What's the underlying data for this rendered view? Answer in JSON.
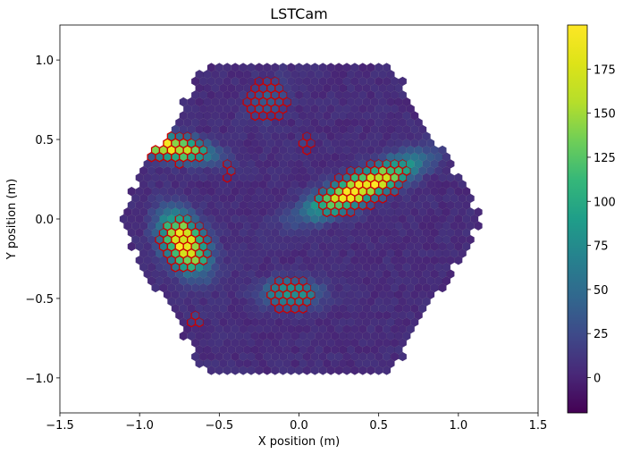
{
  "chart_data": {
    "type": "heatmap",
    "subtype": "hexagonal camera image",
    "title": "LSTCam",
    "xlabel": "X position (m)",
    "ylabel": "Y position (m)",
    "xlim": [
      -1.5,
      1.5
    ],
    "ylim": [
      -1.22,
      1.22
    ],
    "x_ticks": [
      -1.5,
      -1.0,
      -0.5,
      0.0,
      0.5,
      1.0,
      1.5
    ],
    "x_tick_labels": [
      "−1.5",
      "−1.0",
      "−0.5",
      "0.0",
      "0.5",
      "1.0",
      "1.5"
    ],
    "y_ticks": [
      -1.0,
      -0.5,
      0.0,
      0.5,
      1.0
    ],
    "y_tick_labels": [
      "−1.0",
      "−0.5",
      "0.0",
      "0.5",
      "1.0"
    ],
    "camera_radius": 1.15,
    "pixel_pitch": 0.05,
    "background_level": 5,
    "colorbar": {
      "colormap": "viridis",
      "vmin": -20,
      "vmax": 200,
      "ticks": [
        0,
        25,
        50,
        75,
        100,
        125,
        150,
        175
      ],
      "tick_labels": [
        "0",
        "25",
        "50",
        "75",
        "100",
        "125",
        "150",
        "175"
      ]
    },
    "highlight_color": "#cc0000",
    "clusters": [
      {
        "x": -0.8,
        "y": 0.45,
        "peak": 185,
        "sigma_major": 0.16,
        "sigma_minor": 0.05,
        "angle_deg": -10,
        "island_radius": 0.12
      },
      {
        "x": -0.72,
        "y": -0.15,
        "peak": 200,
        "sigma_major": 0.13,
        "sigma_minor": 0.08,
        "angle_deg": -60,
        "island_radius": 0.16
      },
      {
        "x": 0.4,
        "y": 0.2,
        "peak": 200,
        "sigma_major": 0.24,
        "sigma_minor": 0.06,
        "angle_deg": 25,
        "island_radius": 0.18
      },
      {
        "x": -0.2,
        "y": 0.75,
        "peak": 35,
        "sigma_major": 0.1,
        "sigma_minor": 0.07,
        "angle_deg": 50,
        "island_radius": 0.12
      },
      {
        "x": -0.05,
        "y": -0.47,
        "peak": 85,
        "sigma_major": 0.12,
        "sigma_minor": 0.06,
        "angle_deg": 0,
        "island_radius": 0.1
      },
      {
        "x": -0.65,
        "y": -0.62,
        "peak": 20,
        "sigma_major": 0.03,
        "sigma_minor": 0.03,
        "angle_deg": 0,
        "island_radius": 0.04
      },
      {
        "x": -0.43,
        "y": 0.3,
        "peak": 20,
        "sigma_major": 0.03,
        "sigma_minor": 0.03,
        "angle_deg": 0,
        "island_radius": 0.04
      },
      {
        "x": 0.05,
        "y": 0.48,
        "peak": 20,
        "sigma_major": 0.03,
        "sigma_minor": 0.03,
        "angle_deg": 0,
        "island_radius": 0.04
      }
    ]
  }
}
